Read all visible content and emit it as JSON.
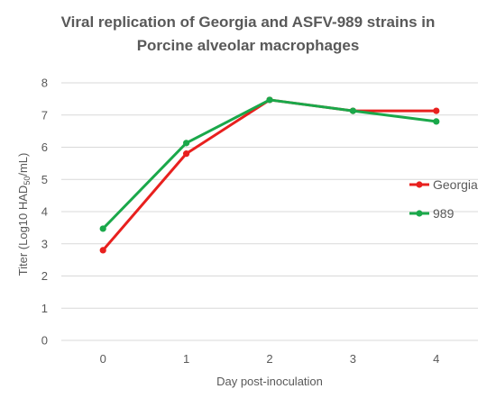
{
  "chart_data": {
    "type": "line",
    "title": [
      "Viral replication of Georgia and ASFV-989 strains in",
      "Porcine alveolar macrophages"
    ],
    "xlabel": "Day post-inoculation",
    "ylabel": {
      "prefix": "Titer (Log10 HAD",
      "subscript": "50",
      "suffix": "/mL)"
    },
    "categories": [
      "0",
      "1",
      "2",
      "3",
      "4"
    ],
    "ylim": [
      0,
      8
    ],
    "yticks": [
      "0",
      "1",
      "2",
      "3",
      "4",
      "5",
      "6",
      "7",
      "8"
    ],
    "grid": "horizontal",
    "legend_position": "right",
    "series": [
      {
        "name": "Georgia",
        "color": "#e8201e",
        "values": [
          2.8,
          5.8,
          7.47,
          7.13,
          7.13
        ]
      },
      {
        "name": "989",
        "color": "#1aa84a",
        "values": [
          3.47,
          6.13,
          7.47,
          7.13,
          6.8
        ]
      }
    ]
  }
}
